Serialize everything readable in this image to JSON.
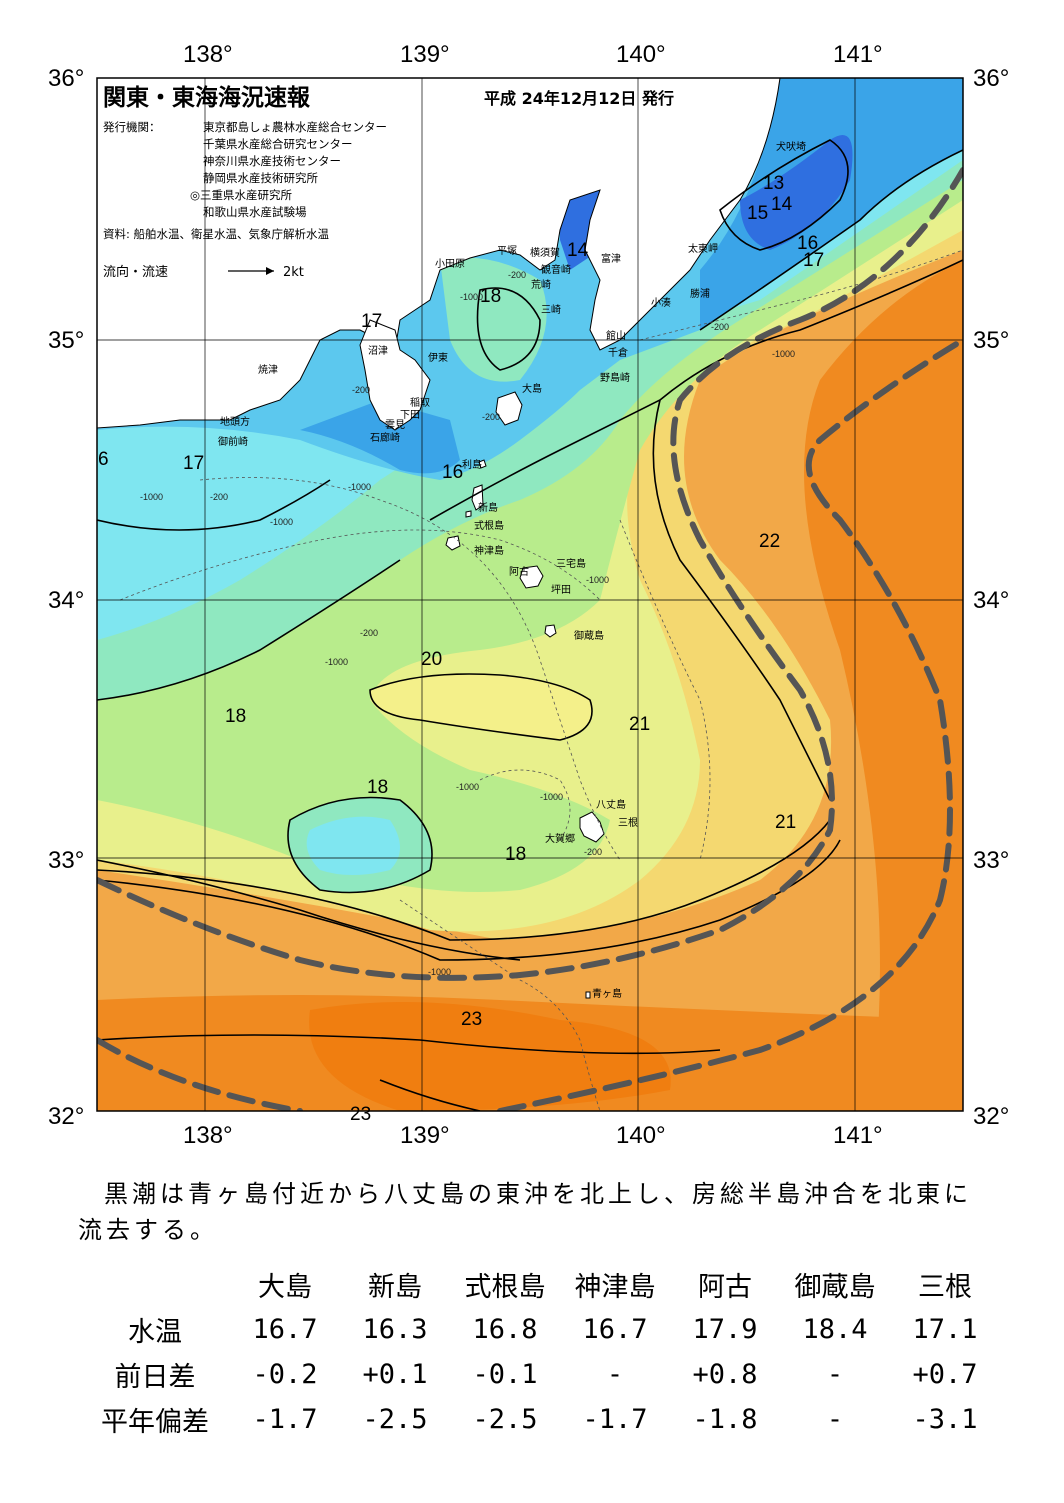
{
  "header": {
    "title": "関東・東海海況速報",
    "date": "平成 24年12月12日 発行",
    "issuer_label": "発行機関：",
    "issuers": [
      "東京都島しょ農林水産総合センター",
      "千葉県水産総合研究センター",
      "神奈川県水産技術センター",
      "静岡県水産技術研究所",
      "◎三重県水産研究所",
      "和歌山県水産試験場"
    ],
    "source": "資料: 船舶水温、衛星水温、気象庁解析水温",
    "current_legend": "流向・流速",
    "current_scale": "2kt"
  },
  "axes": {
    "lon_top": [
      "138°",
      "139°",
      "140°",
      "141°"
    ],
    "lon_bottom": [
      "138°",
      "139°",
      "140°",
      "141°"
    ],
    "lat_left": [
      "36°",
      "35°",
      "34°",
      "33°",
      "32°"
    ],
    "lat_right": [
      "36°",
      "35°",
      "34°",
      "33°",
      "32°"
    ]
  },
  "places": [
    "犬吠埼",
    "太東岬",
    "勝浦",
    "小湊",
    "富津",
    "館山",
    "千倉",
    "野島崎",
    "横須賀",
    "観音崎",
    "荒崎",
    "三崎",
    "平塚",
    "小田原",
    "沼津",
    "伊東",
    "稲取",
    "下田",
    "焼津",
    "地頭方",
    "御前崎",
    "雲見",
    "石廊崎",
    "大島",
    "利島",
    "新島",
    "式根島",
    "神津島",
    "三宅島",
    "阿古",
    "坪田",
    "御蔵島",
    "八丈島",
    "三根",
    "大賀郷",
    "青ヶ島"
  ],
  "isotherm_labels": [
    "13",
    "14",
    "15",
    "16",
    "17",
    "14",
    "17",
    "18",
    "17",
    "16",
    "6",
    "17",
    "16",
    "22",
    "20",
    "18",
    "21",
    "18",
    "21",
    "18",
    "23",
    "23"
  ],
  "depth_labels": [
    "-200",
    "-1000",
    "-200",
    "-200",
    "-1000",
    "-200",
    "-1000",
    "-1000",
    "-200",
    "-1000",
    "-1000",
    "-1000",
    "-200",
    "-1000",
    "-1000",
    "-1000",
    "-200"
  ],
  "summary": "黒潮は青ヶ島付近から八丈島の東沖を北上し、房総半島沖合を北東に流去する。",
  "table": {
    "columns": [
      "大島",
      "新島",
      "式根島",
      "神津島",
      "阿古",
      "御蔵島",
      "三根"
    ],
    "rows": [
      {
        "label": "水温",
        "values": [
          "16.7",
          "16.3",
          "16.8",
          "16.7",
          "17.9",
          "18.4",
          "17.1"
        ]
      },
      {
        "label": "前日差",
        "values": [
          "-0.2",
          "+0.1",
          "-0.1",
          "-",
          "+0.8",
          "-",
          "+0.7"
        ]
      },
      {
        "label": "平年偏差",
        "values": [
          "-1.7",
          "-2.5",
          "-2.5",
          "-1.7",
          "-1.8",
          "-",
          "-3.1"
        ]
      }
    ]
  },
  "colors": {
    "water_13": "#2f6fe0",
    "water_15": "#3aa4e8",
    "water_16": "#5cc8ee",
    "water_17": "#7fe6f0",
    "water_18": "#8fe8c0",
    "water_19": "#b8ec8c",
    "water_20": "#e8f08c",
    "water_21": "#f4d870",
    "water_22": "#f2a848",
    "water_23": "#f08a20",
    "land": "#ffffff",
    "kuroshio_axis": "#555555"
  }
}
